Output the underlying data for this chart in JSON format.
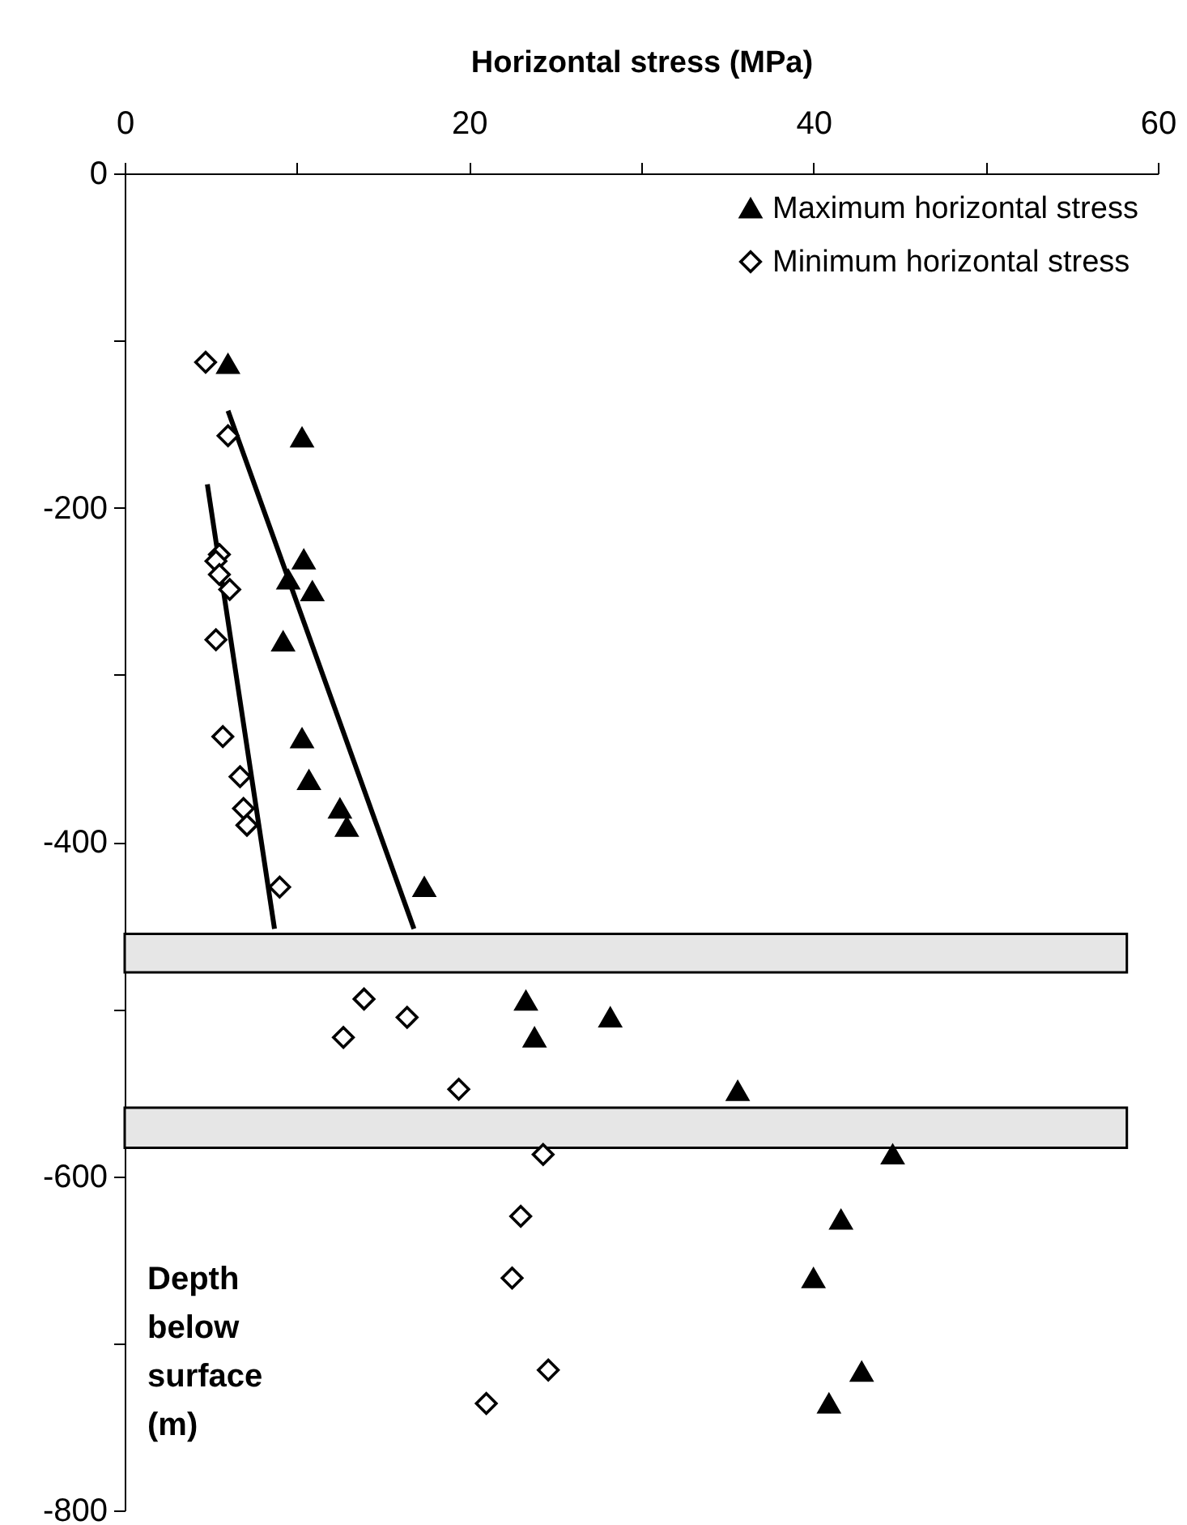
{
  "chart_data": {
    "type": "scatter",
    "xlabel": "Horizontal stress (MPa)",
    "ylabel": "Depth below surface (m)",
    "xlim": [
      0,
      60
    ],
    "ylim": [
      -800,
      0
    ],
    "xticks": [
      0,
      {
        "value": 10,
        "label": null
      },
      20,
      {
        "value": 30,
        "label": null
      },
      40,
      {
        "value": 50,
        "label": null
      },
      60
    ],
    "yticks": [
      0,
      {
        "value": -100,
        "label": null
      },
      -200,
      {
        "value": -300,
        "label": null
      },
      -400,
      {
        "value": -500,
        "label": null
      },
      -600,
      {
        "value": -700,
        "label": null
      },
      -800
    ],
    "grid": false,
    "legend": "top right",
    "series": [
      {
        "name": "Maximum horizontal stress",
        "color": "#000000",
        "marker": "triangle",
        "x": [
          6.0,
          10.3,
          10.4,
          9.5,
          10.9,
          9.2,
          10.3,
          10.7,
          12.5,
          12.9,
          17.4,
          23.3,
          23.8,
          28.2,
          35.6,
          44.6,
          41.6,
          40.0,
          42.8,
          40.9
        ],
        "values": [
          -114,
          -158,
          -231,
          -243,
          -250,
          -280,
          -338,
          -363,
          -380,
          -391,
          -427,
          -495,
          -517,
          -505,
          -549,
          -587,
          -626,
          -661,
          -717,
          -736
        ]
      },
      {
        "name": "Minimum horizontal stress",
        "color": "#000000",
        "marker": "diamond",
        "x": [
          4.7,
          6.0,
          5.5,
          5.3,
          5.5,
          6.1,
          5.3,
          5.7,
          6.7,
          6.9,
          7.1,
          9.0,
          13.9,
          12.7,
          16.4,
          19.4,
          24.3,
          23.0,
          22.5,
          24.6,
          21.0
        ],
        "values": [
          -113,
          -157,
          -228,
          -232,
          -240,
          -249,
          -279,
          -337,
          -361,
          -380,
          -390,
          -427,
          -494,
          -517,
          -505,
          -548,
          -587,
          -624,
          -661,
          -716,
          -736
        ]
      },
      {
        "type": "line",
        "color": "#000000",
        "marker": "none",
        "x": [
          4.8,
          8.7
        ],
        "values": [
          -186,
          -452
        ]
      },
      {
        "type": "line",
        "color": "#000000",
        "marker": "none",
        "x": [
          6.0,
          16.8
        ],
        "values": [
          -142,
          -452
        ]
      }
    ],
    "bands": [
      {
        "axis": "y",
        "from": -455,
        "to": -478,
        "color": "#e6e6e6"
      },
      {
        "axis": "y",
        "from": -559,
        "to": -583,
        "color": "#e6e6e6"
      }
    ]
  }
}
